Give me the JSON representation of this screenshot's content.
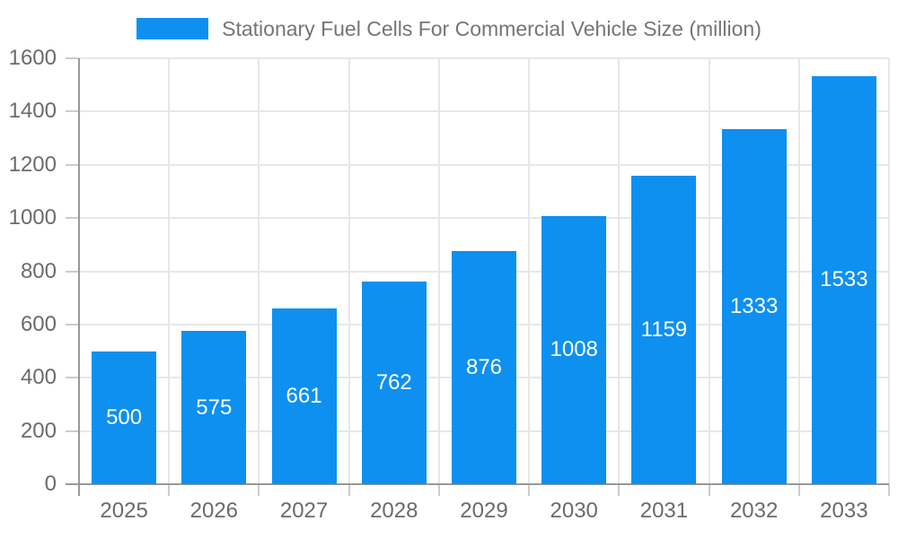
{
  "chart_data": {
    "type": "bar",
    "title": "Stationary Fuel Cells For Commercial Vehicle Size (million)",
    "categories": [
      "2025",
      "2026",
      "2027",
      "2028",
      "2029",
      "2030",
      "2031",
      "2032",
      "2033"
    ],
    "values": [
      500,
      575,
      661,
      762,
      876,
      1008,
      1159,
      1333,
      1533
    ],
    "bar_labels": [
      "500",
      "575",
      "661",
      "762",
      "876",
      "1008",
      "1159",
      "1333",
      "1533"
    ],
    "xlabel": "",
    "ylabel": "",
    "ylim": [
      0,
      1600
    ],
    "yticks": [
      0,
      200,
      400,
      600,
      800,
      1000,
      1200,
      1400,
      1600
    ],
    "grid": "on",
    "legend_position": "top-center",
    "bar_color": "#0e90f0",
    "bar_label_color": "#ffffff",
    "axis_label_color": "#6b6b6b",
    "axis_line_color": "#999999",
    "gridline_color": "#e7e7e7",
    "tick_color": "#cccccc",
    "legend_text_color": "#757575"
  }
}
